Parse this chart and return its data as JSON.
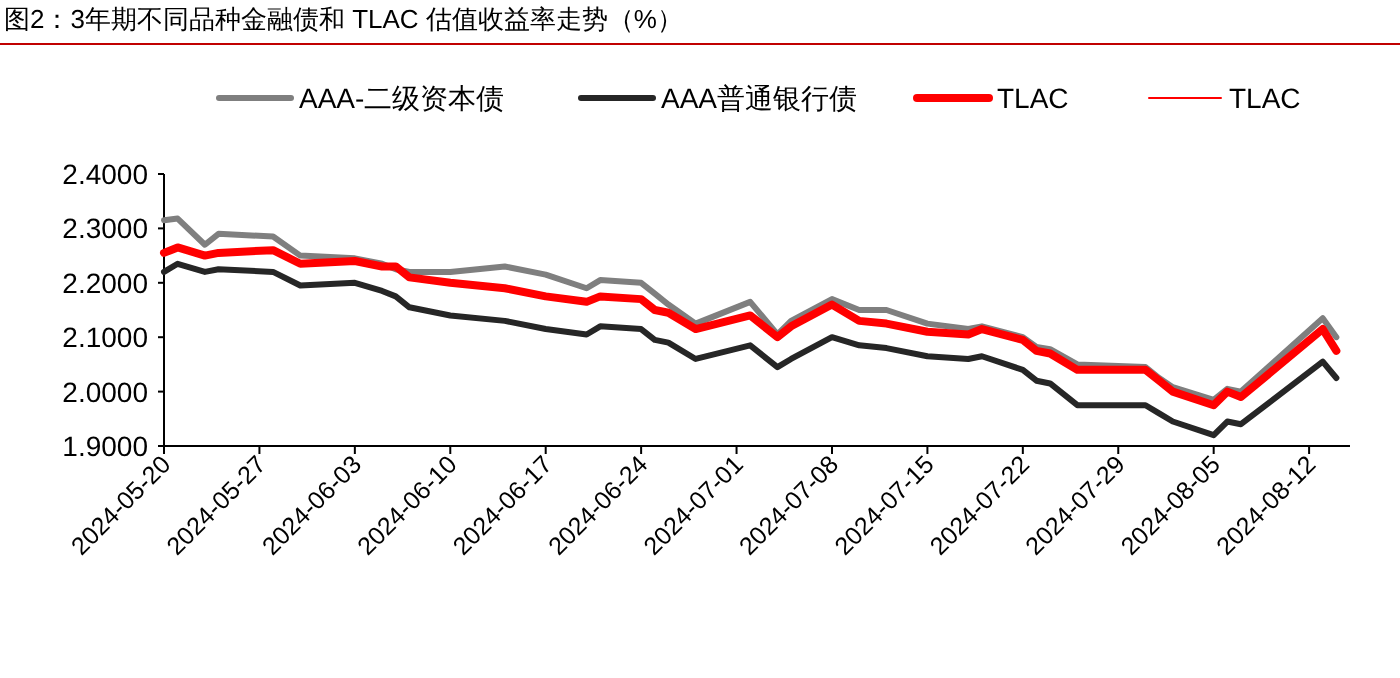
{
  "chart_data": {
    "type": "line",
    "title": "图2：3年期不同品种金融债和 TLAC 估值收益率走势（%）",
    "x": [
      "2024-05-20",
      "2024-05-21",
      "2024-05-23",
      "2024-05-24",
      "2024-05-28",
      "2024-05-30",
      "2024-06-03",
      "2024-06-05",
      "2024-06-06",
      "2024-06-07",
      "2024-06-10",
      "2024-06-14",
      "2024-06-17",
      "2024-06-20",
      "2024-06-21",
      "2024-06-24",
      "2024-06-25",
      "2024-06-26",
      "2024-06-28",
      "2024-07-02",
      "2024-07-04",
      "2024-07-05",
      "2024-07-08",
      "2024-07-10",
      "2024-07-12",
      "2024-07-15",
      "2024-07-18",
      "2024-07-19",
      "2024-07-22",
      "2024-07-23",
      "2024-07-24",
      "2024-07-26",
      "2024-07-31",
      "2024-08-01",
      "2024-08-02",
      "2024-08-05",
      "2024-08-06",
      "2024-08-07",
      "2024-08-13",
      "2024-08-14"
    ],
    "series": [
      {
        "name": "AAA-二级资本债",
        "color": "#7f7f7f",
        "values": [
          2.315,
          2.318,
          2.27,
          2.29,
          2.285,
          2.25,
          2.245,
          2.235,
          2.225,
          2.22,
          2.22,
          2.23,
          2.215,
          2.19,
          2.205,
          2.2,
          2.18,
          2.16,
          2.125,
          2.165,
          2.105,
          2.13,
          2.17,
          2.15,
          2.15,
          2.125,
          2.115,
          2.12,
          2.1,
          2.082,
          2.078,
          2.05,
          2.045,
          2.025,
          2.008,
          1.985,
          2.005,
          2.0,
          2.135,
          2.1
        ]
      },
      {
        "name": "AAA普通银行债",
        "color": "#262626",
        "values": [
          2.22,
          2.235,
          2.22,
          2.225,
          2.22,
          2.195,
          2.2,
          2.185,
          2.175,
          2.155,
          2.14,
          2.13,
          2.115,
          2.105,
          2.12,
          2.115,
          2.095,
          2.09,
          2.06,
          2.085,
          2.045,
          2.06,
          2.1,
          2.085,
          2.08,
          2.065,
          2.06,
          2.065,
          2.04,
          2.02,
          2.015,
          1.975,
          1.975,
          1.96,
          1.945,
          1.92,
          1.945,
          1.94,
          2.055,
          2.025
        ]
      },
      {
        "name": "TLAC",
        "color": "#ff0000",
        "values": [
          2.255,
          2.265,
          2.25,
          2.255,
          2.26,
          2.235,
          2.24,
          2.23,
          2.23,
          2.21,
          2.2,
          2.19,
          2.175,
          2.165,
          2.175,
          2.17,
          2.15,
          2.145,
          2.115,
          2.14,
          2.1,
          2.12,
          2.16,
          2.13,
          2.125,
          2.11,
          2.105,
          2.115,
          2.095,
          2.075,
          2.07,
          2.04,
          2.04,
          2.02,
          2.0,
          1.975,
          2.0,
          1.99,
          2.115,
          2.075
        ]
      },
      {
        "name": "TLAC",
        "color": "#ff0000",
        "values": [
          null,
          null,
          null,
          null,
          null,
          null,
          null,
          null,
          null,
          null,
          null,
          null,
          null,
          null,
          null,
          null,
          null,
          null,
          null,
          null,
          null,
          null,
          null,
          null,
          null,
          null,
          null,
          null,
          null,
          null,
          null,
          null,
          null,
          null,
          null,
          null,
          null,
          null,
          null,
          null
        ]
      }
    ],
    "xlim": [
      "2024-05-20",
      "2024-08-15"
    ],
    "xticks": [
      "2024-05-20",
      "2024-05-27",
      "2024-06-03",
      "2024-06-10",
      "2024-06-17",
      "2024-06-24",
      "2024-07-01",
      "2024-07-08",
      "2024-07-15",
      "2024-07-22",
      "2024-07-29",
      "2024-08-05",
      "2024-08-12"
    ],
    "ylim": [
      1.9,
      2.4
    ],
    "yticks": [
      {
        "value": 1.9,
        "label": "1.9000"
      },
      {
        "value": 2.0,
        "label": "2.0000"
      },
      {
        "value": 2.1,
        "label": "2.1000"
      },
      {
        "value": 2.2,
        "label": "2.2000"
      },
      {
        "value": 2.3,
        "label": "2.3000"
      },
      {
        "value": 2.4,
        "label": "2.4000"
      }
    ],
    "legend": "top",
    "grid": false,
    "marker": "none",
    "line_style": "solid"
  }
}
